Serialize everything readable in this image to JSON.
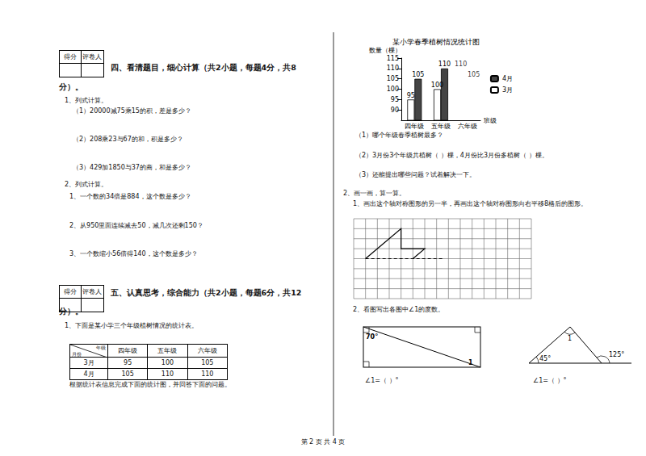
{
  "score_box": [
    "得分",
    "评卷人"
  ],
  "section4": {
    "heading": [
      "四、看清题目，细心计算（共2小题，每题4分，共8",
      "分）。"
    ],
    "q1": {
      "title": "1、列式计算。",
      "items": [
        "（1）20000减75乘15的积，差是多少？",
        "（2）208乘23与67的和，积是多少？",
        "（3）429加1850与37的商，和是多少？"
      ]
    },
    "q2": {
      "title": "2、列式计算。",
      "items": [
        "1、一个数的34倍是884，这个数是多少？",
        "2、从950里面连续减去50，减几次还剩150？",
        "3、一个数缩小56倍得140，这个数是多少？"
      ]
    }
  },
  "section5": {
    "heading": [
      "五、认真思考，综合能力（共2小题，每题6分，共12",
      "分）。"
    ],
    "q1": {
      "title": "1、下面是某小学三个年级植树情况的统计表。",
      "table": {
        "corner": {
          "top": "年级",
          "bottom": "月份"
        },
        "columns": [
          "四年级",
          "五年级",
          "六年级"
        ],
        "rows": [
          {
            "label": "3月",
            "values": [
              95,
              100,
              105
            ]
          },
          {
            "label": "4月",
            "values": [
              105,
              110,
              110
            ]
          }
        ]
      },
      "instruction": "根据统计表信息完成下面的统计图，并回答下面的问题。",
      "questions": [
        "（1）哪个年级春季植树最多？",
        "（2）3月份3个年级共植树（    ）棵，4月份比3月份多植树（    ）棵。",
        "（3）还能提出哪些问题？试着解决一下。"
      ]
    },
    "q2": {
      "title": "2、画一画，算一算。",
      "task1": "1、画出这个轴对称图形的另一半，再画出这个轴对称图形向右平移8格后的图形。",
      "task2": "2、看图写出各图中∠1的度数。",
      "figure1": {
        "angle": "70°",
        "mark": "1"
      },
      "figure2": {
        "angles": [
          "45°",
          "125°"
        ],
        "mark": "1"
      },
      "answer": "∠1=（          ）°"
    }
  },
  "footer": "第 2 页 共 4 页",
  "chart_data": {
    "type": "bar",
    "title": "某小学春季植树情况统计图",
    "y_label": "数量（棵）",
    "x_label": "班级",
    "categories": [
      "四年级",
      "五年级",
      "六年级"
    ],
    "series": [
      {
        "name": "3月",
        "color": "#ffffff",
        "values": [
          95,
          100,
          null
        ]
      },
      {
        "name": "4月",
        "color": "#444444",
        "values": [
          105,
          110,
          null
        ]
      }
    ],
    "annotations": [
      {
        "category": "六年级",
        "value": 110
      },
      {
        "category": "六年级",
        "value": 105
      }
    ],
    "ylim": [
      85,
      115
    ],
    "yticks": [
      90,
      95,
      100,
      105,
      110,
      115
    ],
    "data_labels": true,
    "legend": "right",
    "grid": false
  }
}
